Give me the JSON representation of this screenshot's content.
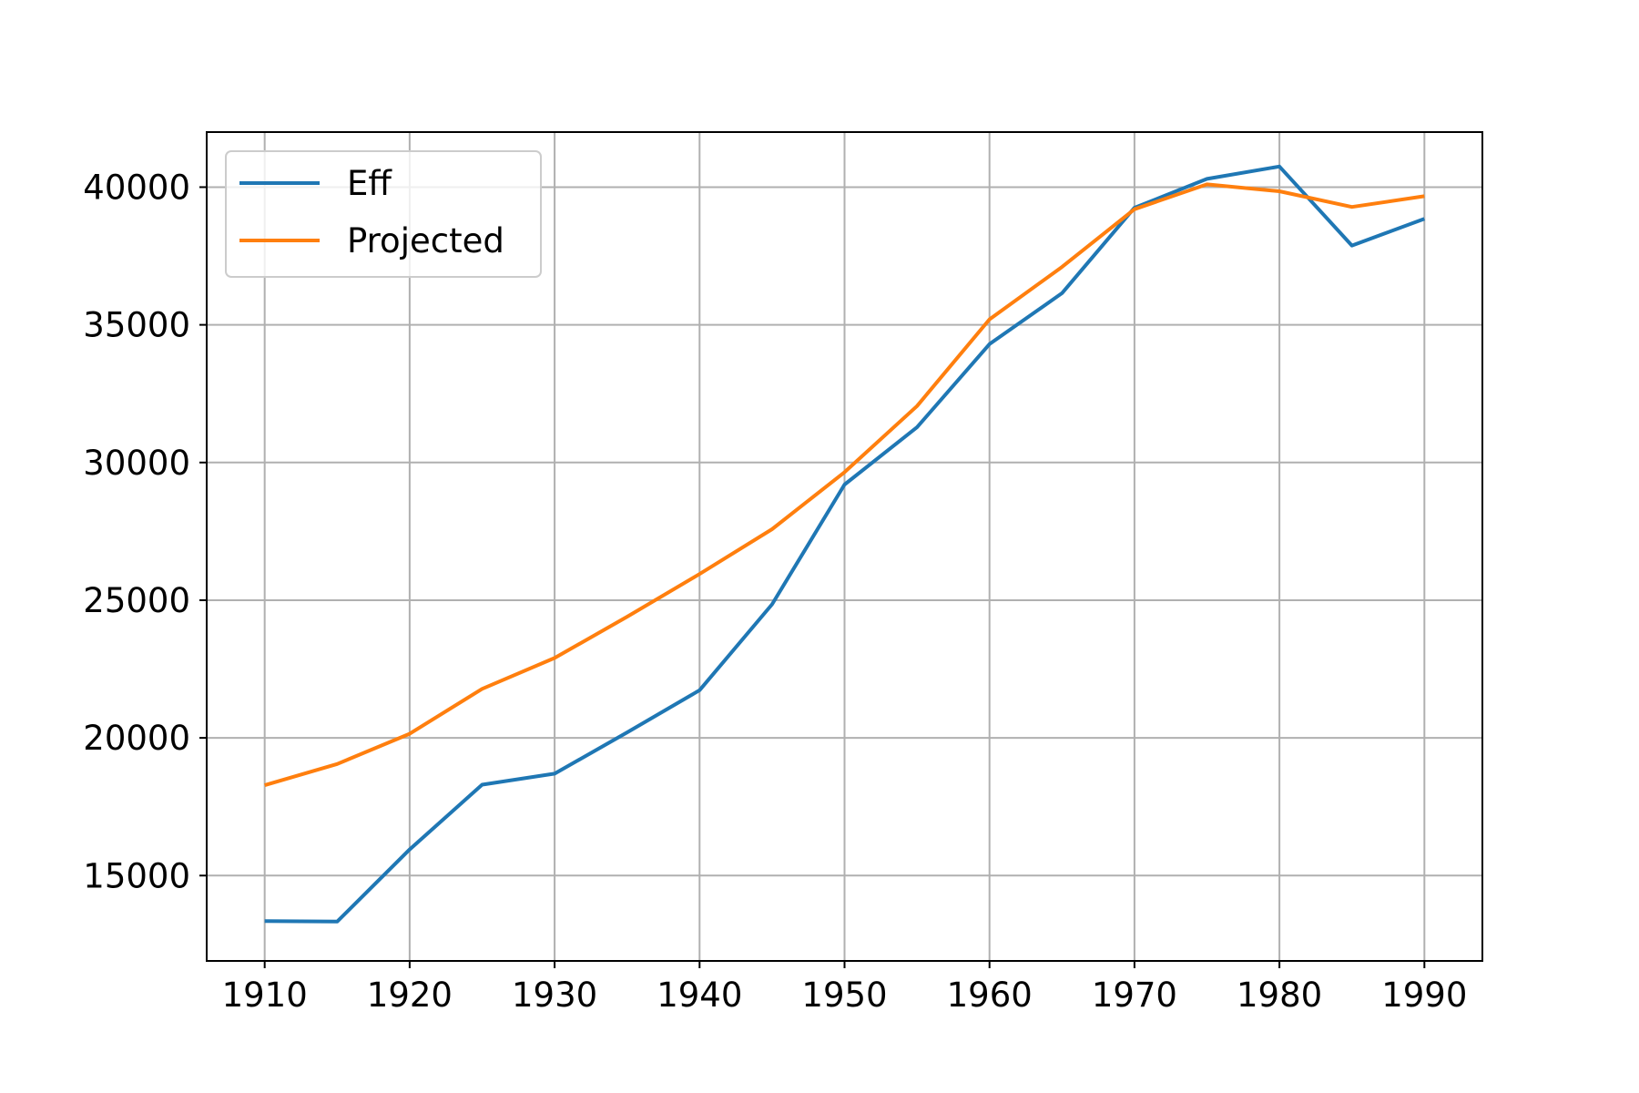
{
  "chart_data": {
    "type": "line",
    "title": "",
    "xlabel": "",
    "ylabel": "",
    "x": [
      1910,
      1915,
      1920,
      1925,
      1930,
      1935,
      1940,
      1945,
      1950,
      1955,
      1960,
      1965,
      1970,
      1975,
      1980,
      1985,
      1990
    ],
    "series": [
      {
        "name": "Eff",
        "color": "#1f77b4",
        "values": [
          13350,
          13330,
          15950,
          18300,
          18700,
          20200,
          21730,
          24850,
          29200,
          31280,
          34300,
          36150,
          39250,
          40300,
          40750,
          37880,
          38850
        ]
      },
      {
        "name": "Projected",
        "color": "#ff7f0e",
        "values": [
          18280,
          19050,
          20150,
          21780,
          22900,
          24400,
          25950,
          27580,
          29650,
          32050,
          35200,
          37100,
          39200,
          40100,
          39850,
          39280,
          39670
        ]
      }
    ],
    "xlim": [
      1906,
      1994
    ],
    "ylim": [
      11900,
      42000
    ],
    "xticks": [
      1910,
      1920,
      1930,
      1940,
      1950,
      1960,
      1970,
      1980,
      1990
    ],
    "yticks": [
      15000,
      20000,
      25000,
      30000,
      35000,
      40000
    ],
    "grid": true,
    "legend_position": "upper-left",
    "grid_color": "#b0b0b0",
    "axis_color": "#000000"
  }
}
